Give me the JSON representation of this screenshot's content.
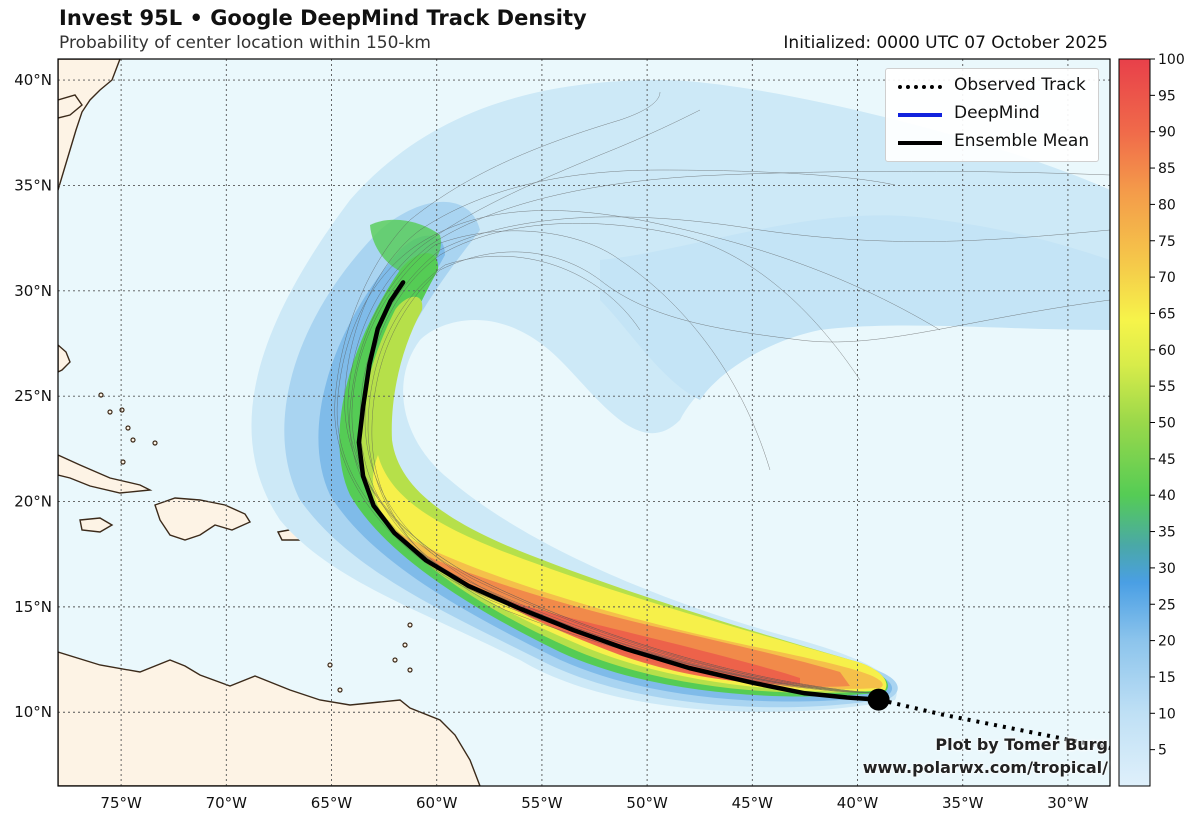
{
  "title": "Invest 95L • Google DeepMind Track Density",
  "subtitle": "Probability of center location within 150-km",
  "initialized": "Initialized: 0000 UTC 07 October 2025",
  "legend": {
    "observed": "Observed Track",
    "deepmind": "DeepMind",
    "mean": "Ensemble Mean"
  },
  "credit": {
    "line1": "Plot by Tomer Burg",
    "line2": "www.polarwx.com/tropical/"
  },
  "lat_labels": [
    "40°N",
    "35°N",
    "30°N",
    "25°N",
    "20°N",
    "15°N",
    "10°N"
  ],
  "lon_labels": [
    "75°W",
    "70°W",
    "65°W",
    "60°W",
    "55°W",
    "50°W",
    "45°W",
    "40°W",
    "35°W",
    "30°W"
  ],
  "colorbar_labels": [
    "100",
    "95",
    "90",
    "85",
    "80",
    "75",
    "70",
    "65",
    "60",
    "55",
    "50",
    "45",
    "40",
    "35",
    "30",
    "25",
    "20",
    "15",
    "10",
    "5"
  ],
  "colors": {
    "ocean": "#eaf8fc",
    "land": "#fdf3e5",
    "observed": "#000000",
    "deepmind": "#1122dd",
    "mean": "#000000"
  },
  "chart_data": {
    "type": "heatmap",
    "xlim": [
      -78,
      -28
    ],
    "ylim": [
      6.5,
      41
    ],
    "x_ticks": [
      -75,
      -70,
      -65,
      -60,
      -55,
      -50,
      -45,
      -40,
      -35,
      -30
    ],
    "y_ticks": [
      10,
      15,
      20,
      25,
      30,
      35,
      40
    ],
    "colorbar": {
      "min": 0,
      "max": 100,
      "step": 5
    },
    "ensemble_mean": [
      [
        -39.0,
        10.6
      ],
      [
        -40.5,
        10.7
      ],
      [
        -42.5,
        10.9
      ],
      [
        -45.0,
        11.4
      ],
      [
        -48.0,
        12.1
      ],
      [
        -51.0,
        13.0
      ],
      [
        -53.5,
        13.9
      ],
      [
        -56.0,
        14.9
      ],
      [
        -58.5,
        16.0
      ],
      [
        -60.5,
        17.2
      ],
      [
        -62.0,
        18.5
      ],
      [
        -63.0,
        19.8
      ],
      [
        -63.5,
        21.2
      ],
      [
        -63.7,
        22.8
      ],
      [
        -63.5,
        24.5
      ],
      [
        -63.2,
        26.5
      ],
      [
        -62.8,
        28.2
      ],
      [
        -62.2,
        29.5
      ],
      [
        -61.6,
        30.4
      ]
    ],
    "observed_track": [
      [
        -27.5,
        8.2
      ],
      [
        -30.0,
        8.7
      ],
      [
        -33.0,
        9.3
      ],
      [
        -36.0,
        9.9
      ],
      [
        -39.0,
        10.6
      ]
    ],
    "initial_position": [
      -39.0,
      10.6
    ]
  }
}
